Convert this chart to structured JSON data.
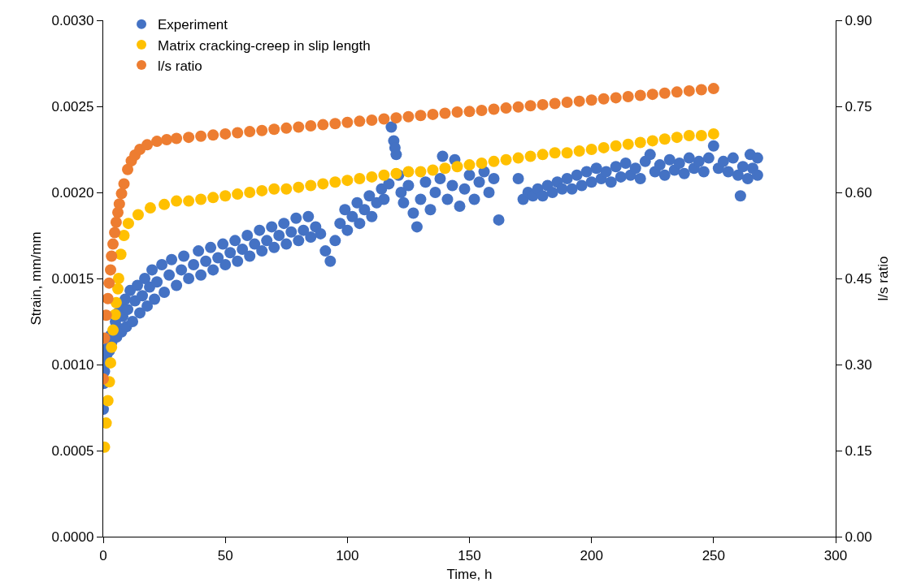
{
  "chart_data": {
    "type": "scatter",
    "xlabel": "Time, h",
    "ylabel": "Strain, mm/mm",
    "y2label": "l/s ratio",
    "legend": "top left",
    "marker": "circle",
    "xlim": [
      0,
      300
    ],
    "xticks": [
      0,
      50,
      100,
      150,
      200,
      250,
      300
    ],
    "ylim": [
      0,
      0.003
    ],
    "yticks": [
      {
        "value": 0,
        "label": "0.0000"
      },
      {
        "value": 0.0005,
        "label": "0.0005"
      },
      {
        "value": 0.001,
        "label": "0.0010"
      },
      {
        "value": 0.0015,
        "label": "0.0015"
      },
      {
        "value": 0.002,
        "label": "0.0020"
      },
      {
        "value": 0.0025,
        "label": "0.0025"
      },
      {
        "value": 0.003,
        "label": "0.0030"
      }
    ],
    "y2lim": [
      0,
      0.9
    ],
    "y2ticks": [
      {
        "value": 0,
        "label": "0.00"
      },
      {
        "value": 0.15,
        "label": "0.15"
      },
      {
        "value": 0.3,
        "label": "0.30"
      },
      {
        "value": 0.45,
        "label": "0.45"
      },
      {
        "value": 0.6,
        "label": "0.60"
      },
      {
        "value": 0.75,
        "label": "0.75"
      },
      {
        "value": 0.9,
        "label": "0.90"
      }
    ],
    "series": [
      {
        "name": "Experiment",
        "color": "#4472c4",
        "x": [
          0,
          0.2,
          0.5,
          1,
          1.5,
          2,
          2.5,
          3,
          3.5,
          5,
          5.5,
          6,
          6.5,
          7,
          7.5,
          8,
          9,
          9.5,
          10,
          11,
          12,
          13,
          14,
          15,
          16,
          17,
          18,
          19,
          20,
          21,
          22,
          24,
          25,
          27,
          28,
          30,
          32,
          33,
          35,
          37,
          39,
          40,
          42,
          44,
          45,
          47,
          49,
          50,
          52,
          54,
          55,
          57,
          59,
          60,
          62,
          64,
          65,
          67,
          69,
          70,
          72,
          74,
          75,
          77,
          79,
          80,
          82,
          84,
          85,
          87,
          89,
          91,
          93,
          95,
          97,
          99,
          100,
          102,
          104,
          105,
          107,
          109,
          110,
          112,
          114,
          115,
          117,
          118,
          119,
          119.5,
          120,
          121,
          122,
          123,
          125,
          127,
          128.5,
          130,
          132,
          134,
          136,
          138,
          139,
          141,
          143,
          144,
          146,
          148,
          150,
          152,
          154,
          156,
          158,
          160,
          162,
          170,
          172,
          174,
          176,
          178,
          180,
          182,
          184,
          186,
          188,
          190,
          192,
          194,
          196,
          198,
          200,
          202,
          204,
          206,
          208,
          210,
          212,
          214,
          216,
          218,
          220,
          222,
          224,
          226,
          228,
          230,
          232,
          234,
          236,
          238,
          240,
          242,
          244,
          246,
          248,
          250,
          252,
          254,
          256,
          258,
          260,
          261,
          262,
          264,
          265,
          266,
          268,
          268
        ],
        "values": [
          0.00074,
          0.00089,
          0.00096,
          0.00101,
          0.00106,
          0.0011,
          0.00108,
          0.00117,
          0.00113,
          0.00125,
          0.00116,
          0.0013,
          0.00121,
          0.00135,
          0.00119,
          0.00128,
          0.00138,
          0.00122,
          0.00132,
          0.00143,
          0.00125,
          0.00137,
          0.00146,
          0.0013,
          0.0014,
          0.0015,
          0.00134,
          0.00145,
          0.00155,
          0.00138,
          0.00148,
          0.00158,
          0.00142,
          0.00152,
          0.00161,
          0.00146,
          0.00155,
          0.00163,
          0.0015,
          0.00158,
          0.00166,
          0.00152,
          0.0016,
          0.00168,
          0.00155,
          0.00162,
          0.0017,
          0.00158,
          0.00165,
          0.00172,
          0.0016,
          0.00167,
          0.00175,
          0.00163,
          0.0017,
          0.00178,
          0.00166,
          0.00172,
          0.0018,
          0.00168,
          0.00175,
          0.00182,
          0.0017,
          0.00177,
          0.00185,
          0.00172,
          0.00178,
          0.00186,
          0.00174,
          0.0018,
          0.00176,
          0.00166,
          0.0016,
          0.00172,
          0.00182,
          0.0019,
          0.00178,
          0.00186,
          0.00194,
          0.00182,
          0.0019,
          0.00198,
          0.00186,
          0.00194,
          0.00202,
          0.00196,
          0.00205,
          0.00238,
          0.0023,
          0.00226,
          0.00222,
          0.0021,
          0.002,
          0.00194,
          0.00204,
          0.00188,
          0.0018,
          0.00196,
          0.00206,
          0.0019,
          0.002,
          0.00208,
          0.00221,
          0.00196,
          0.00204,
          0.00219,
          0.00192,
          0.00202,
          0.0021,
          0.00196,
          0.00206,
          0.00212,
          0.002,
          0.00208,
          0.00184,
          0.00208,
          0.00196,
          0.002,
          0.00198,
          0.00202,
          0.00198,
          0.00204,
          0.002,
          0.00206,
          0.00202,
          0.00208,
          0.00202,
          0.0021,
          0.00204,
          0.00212,
          0.00206,
          0.00214,
          0.00208,
          0.00212,
          0.00206,
          0.00215,
          0.00209,
          0.00217,
          0.0021,
          0.00214,
          0.00208,
          0.00218,
          0.00222,
          0.00212,
          0.00216,
          0.0021,
          0.00219,
          0.00213,
          0.00217,
          0.00211,
          0.0022,
          0.00214,
          0.00218,
          0.00212,
          0.0022,
          0.00227,
          0.00214,
          0.00218,
          0.00212,
          0.0022,
          0.0021,
          0.00198,
          0.00215,
          0.00208,
          0.00222,
          0.00214,
          0.0021,
          0.0022
        ]
      },
      {
        "name": "Matrix cracking-creep in slip length",
        "color": "#ffc000",
        "x": [
          0.5,
          1.2,
          1.9,
          2.5,
          3,
          3.4,
          4,
          4.9,
          5.3,
          6,
          6.3,
          7.2,
          8.5,
          10.3,
          14.3,
          19.3,
          25,
          30,
          35,
          40,
          45,
          50,
          55,
          60,
          65,
          70,
          75,
          80,
          85,
          90,
          95,
          100,
          105,
          110,
          115,
          120,
          125,
          130,
          135,
          140,
          145,
          150,
          155,
          160,
          165,
          170,
          175,
          180,
          185,
          190,
          195,
          200,
          205,
          210,
          215,
          220,
          225,
          230,
          235,
          240,
          245,
          250
        ],
        "values": [
          0.00052,
          0.00066,
          0.00079,
          0.0009,
          0.00101,
          0.0011,
          0.0012,
          0.00129,
          0.00136,
          0.00144,
          0.0015,
          0.00164,
          0.00175,
          0.00182,
          0.00187,
          0.00191,
          0.00193,
          0.00195,
          0.00195,
          0.00196,
          0.00197,
          0.00198,
          0.00199,
          0.002,
          0.00201,
          0.00202,
          0.00202,
          0.00203,
          0.00204,
          0.00205,
          0.00206,
          0.00207,
          0.00208,
          0.00209,
          0.0021,
          0.00211,
          0.00212,
          0.00212,
          0.00213,
          0.00214,
          0.00215,
          0.00216,
          0.00217,
          0.00218,
          0.00219,
          0.0022,
          0.00221,
          0.00222,
          0.00223,
          0.00223,
          0.00224,
          0.00225,
          0.00226,
          0.00227,
          0.00228,
          0.00229,
          0.0023,
          0.00231,
          0.00232,
          0.00233,
          0.00233,
          0.00234
        ]
      },
      {
        "name": "l/s ratio",
        "color": "#ed7d31",
        "axis": "y2",
        "x": [
          0,
          0.5,
          1.2,
          1.9,
          2.4,
          3,
          3.4,
          4,
          4.7,
          5.3,
          6,
          6.6,
          7.5,
          8.5,
          10,
          11.5,
          13,
          15,
          18,
          22,
          26,
          30,
          35,
          40,
          45,
          50,
          55,
          60,
          65,
          70,
          75,
          80,
          85,
          90,
          95,
          100,
          105,
          110,
          115,
          120,
          125,
          130,
          135,
          140,
          145,
          150,
          155,
          160,
          165,
          170,
          175,
          180,
          185,
          190,
          195,
          200,
          205,
          210,
          215,
          220,
          225,
          230,
          235,
          240,
          245,
          250
        ],
        "values": [
          0.275,
          0.346,
          0.386,
          0.415,
          0.442,
          0.465,
          0.489,
          0.51,
          0.53,
          0.548,
          0.565,
          0.58,
          0.598,
          0.615,
          0.64,
          0.655,
          0.665,
          0.675,
          0.683,
          0.689,
          0.692,
          0.694,
          0.696,
          0.698,
          0.7,
          0.702,
          0.704,
          0.706,
          0.708,
          0.71,
          0.712,
          0.714,
          0.716,
          0.718,
          0.72,
          0.722,
          0.724,
          0.726,
          0.728,
          0.73,
          0.732,
          0.734,
          0.736,
          0.738,
          0.74,
          0.741,
          0.743,
          0.745,
          0.747,
          0.749,
          0.751,
          0.753,
          0.755,
          0.757,
          0.759,
          0.761,
          0.763,
          0.765,
          0.767,
          0.769,
          0.771,
          0.773,
          0.775,
          0.777,
          0.779,
          0.781
        ]
      }
    ]
  }
}
